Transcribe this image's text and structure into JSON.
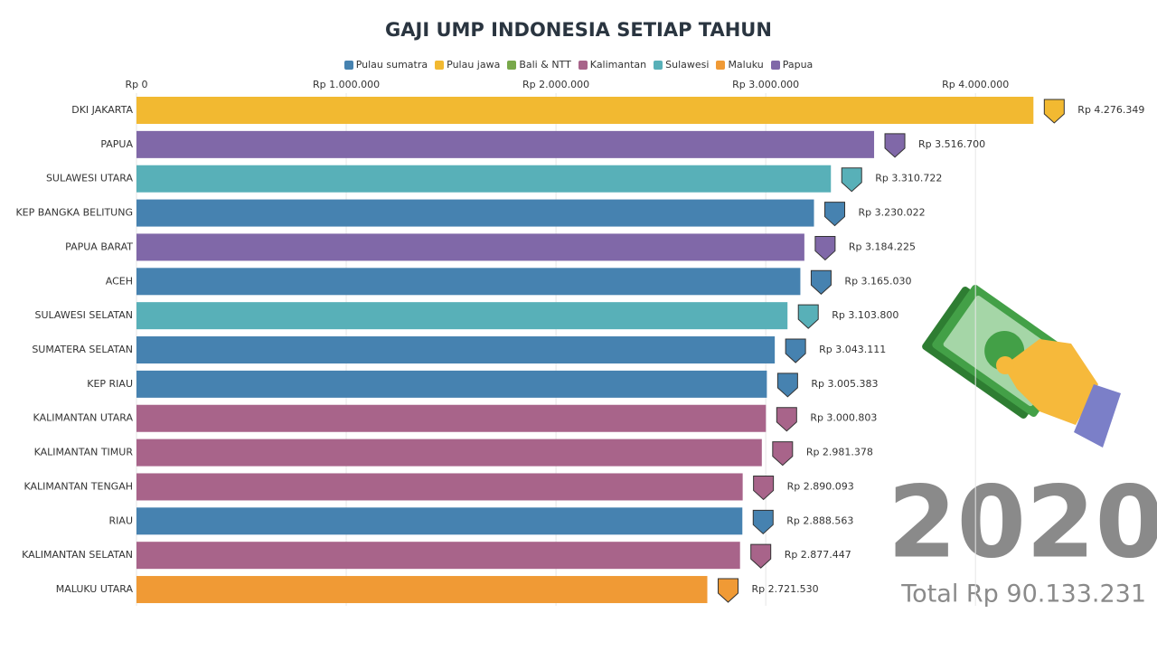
{
  "chart_data": {
    "type": "bar",
    "orientation": "horizontal",
    "title": "GAJI UMP INDONESIA SETIAP TAHUN",
    "categories": [
      "DKI JAKARTA",
      "PAPUA",
      "SULAWESI UTARA",
      "KEP BANGKA BELITUNG",
      "PAPUA BARAT",
      "ACEH",
      "SULAWESI SELATAN",
      "SUMATERA SELATAN",
      "KEP RIAU",
      "KALIMANTAN UTARA",
      "KALIMANTAN TIMUR",
      "KALIMANTAN TENGAH",
      "RIAU",
      "KALIMANTAN SELATAN",
      "MALUKU UTARA"
    ],
    "series": [
      {
        "name": "Pulau sumatra",
        "color": "#4682b0",
        "values": [
          null,
          null,
          null,
          3230022,
          null,
          3165030,
          null,
          3043111,
          3005383,
          null,
          null,
          null,
          2888563,
          null,
          null
        ],
        "value_labels": [
          null,
          null,
          null,
          "Rp 3.230.022",
          null,
          "Rp 3.165.030",
          null,
          "Rp 3.043.111",
          "Rp 3.005.383",
          null,
          null,
          null,
          "Rp 2.888.563",
          null,
          null
        ]
      },
      {
        "name": "Pulau jawa",
        "color": "#f2b931",
        "values": [
          4276349,
          null,
          null,
          null,
          null,
          null,
          null,
          null,
          null,
          null,
          null,
          null,
          null,
          null,
          null
        ],
        "value_labels": [
          "Rp 4.276.349",
          null,
          null,
          null,
          null,
          null,
          null,
          null,
          null,
          null,
          null,
          null,
          null,
          null,
          null
        ]
      },
      {
        "name": "Bali & NTT",
        "color": "#78a84a",
        "values": [
          null,
          null,
          null,
          null,
          null,
          null,
          null,
          null,
          null,
          null,
          null,
          null,
          null,
          null,
          null
        ],
        "value_labels": [
          null,
          null,
          null,
          null,
          null,
          null,
          null,
          null,
          null,
          null,
          null,
          null,
          null,
          null,
          null
        ]
      },
      {
        "name": "Kalimantan",
        "color": "#a8648a",
        "values": [
          null,
          null,
          null,
          null,
          null,
          null,
          null,
          null,
          null,
          3000803,
          2981378,
          2890093,
          null,
          2877447,
          null
        ],
        "value_labels": [
          null,
          null,
          null,
          null,
          null,
          null,
          null,
          null,
          null,
          "Rp 3.000.803",
          "Rp 2.981.378",
          "Rp 2.890.093",
          null,
          "Rp 2.877.447",
          null
        ]
      },
      {
        "name": "Sulawesi",
        "color": "#58b0b8",
        "values": [
          null,
          null,
          3310722,
          null,
          null,
          null,
          3103800,
          null,
          null,
          null,
          null,
          null,
          null,
          null,
          null
        ],
        "value_labels": [
          null,
          null,
          "Rp 3.310.722",
          null,
          null,
          null,
          "Rp 3.103.800",
          null,
          null,
          null,
          null,
          null,
          null,
          null,
          null
        ]
      },
      {
        "name": "Maluku",
        "color": "#f09a35",
        "values": [
          null,
          null,
          null,
          null,
          null,
          null,
          null,
          null,
          null,
          null,
          null,
          null,
          null,
          null,
          2721530
        ],
        "value_labels": [
          null,
          null,
          null,
          null,
          null,
          null,
          null,
          null,
          null,
          null,
          null,
          null,
          null,
          null,
          "Rp 2.721.530"
        ]
      },
      {
        "name": "Papua",
        "color": "#8068a8",
        "values": [
          null,
          3516700,
          null,
          null,
          3184225,
          null,
          null,
          null,
          null,
          null,
          null,
          null,
          null,
          null,
          null
        ],
        "value_labels": [
          null,
          "Rp 3.516.700",
          null,
          null,
          "Rp 3.184.225",
          null,
          null,
          null,
          null,
          null,
          null,
          null,
          null,
          null,
          null
        ]
      }
    ],
    "xlim": [
      0,
      4400000
    ],
    "xticks": [
      {
        "value": 0,
        "label": "Rp 0"
      },
      {
        "value": 1000000,
        "label": "Rp 1.000.000"
      },
      {
        "value": 2000000,
        "label": "Rp 2.000.000"
      },
      {
        "value": 3000000,
        "label": "Rp 3.000.000"
      },
      {
        "value": 4000000,
        "label": "Rp 4.000.000"
      }
    ],
    "grid": true,
    "annotations": [
      "2020",
      "Total Rp 90.133.231"
    ]
  }
}
